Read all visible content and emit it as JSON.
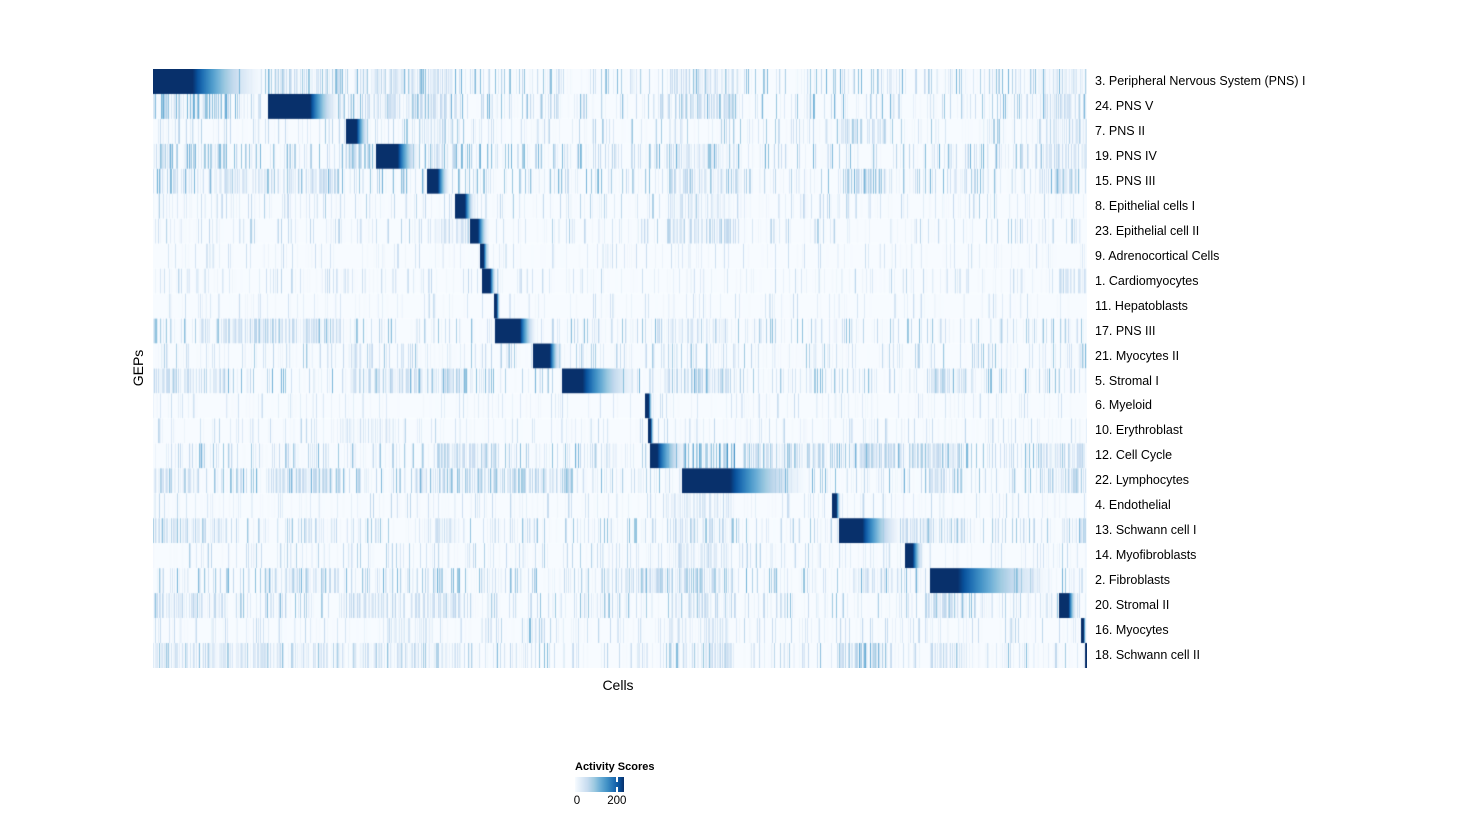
{
  "chart_data": {
    "type": "heatmap",
    "title": "",
    "xlabel": "Cells",
    "ylabel": "GEPs",
    "legend": {
      "title": "Activity Scores",
      "tick_labels": [
        "0",
        "200"
      ],
      "tick_values": [
        0,
        200
      ],
      "range_min": 0,
      "range_max": 240
    },
    "colormap_stops": [
      "#f7fbff",
      "#deebf7",
      "#c6dbef",
      "#9ecae1",
      "#6baed6",
      "#4292c6",
      "#2171b5",
      "#08519c",
      "#08306b"
    ],
    "colormap_positions": [
      0,
      0.13,
      0.26,
      0.39,
      0.52,
      0.65,
      0.78,
      0.9,
      1.0
    ],
    "n_rows": 24,
    "n_cols": 934,
    "seed": 42,
    "rows": [
      {
        "label": "3. Peripheral Nervous System (PNS) I",
        "block": [
          0.0,
          0.042
        ],
        "fade": 0.12,
        "noise": 1.0,
        "clusters": [
          [
            0.12,
            0.2,
            0.5
          ],
          [
            0.24,
            0.32,
            0.3
          ],
          [
            0.55,
            0.63,
            0.3
          ],
          [
            0.95,
            1.0,
            0.2
          ]
        ]
      },
      {
        "label": "24. PNS V",
        "block": [
          0.123,
          0.168
        ],
        "fade": 0.2,
        "noise": 1.0,
        "clusters": [
          [
            0.0,
            0.08,
            0.55
          ],
          [
            0.21,
            0.33,
            0.3
          ],
          [
            0.55,
            0.63,
            0.3
          ],
          [
            0.95,
            1.0,
            0.25
          ]
        ]
      },
      {
        "label": "7. PNS II",
        "block": [
          0.206,
          0.218
        ],
        "fade": 0.232,
        "noise": 0.8,
        "clusters": [
          [
            0.29,
            0.33,
            0.2
          ],
          [
            0.735,
            0.785,
            0.4
          ],
          [
            0.95,
            1.0,
            0.3
          ]
        ]
      },
      {
        "label": "19. PNS IV",
        "block": [
          0.238,
          0.262
        ],
        "fade": 0.286,
        "noise": 1.0,
        "clusters": [
          [
            0.0,
            0.08,
            0.5
          ],
          [
            0.205,
            0.235,
            0.45
          ],
          [
            0.29,
            0.33,
            0.3
          ],
          [
            0.55,
            0.63,
            0.25
          ],
          [
            0.95,
            1.0,
            0.3
          ]
        ]
      },
      {
        "label": "15. PNS III",
        "block": [
          0.293,
          0.305
        ],
        "fade": 0.318,
        "noise": 1.0,
        "clusters": [
          [
            0.0,
            0.2,
            0.25
          ],
          [
            0.55,
            0.63,
            0.3
          ],
          [
            0.735,
            0.785,
            0.45
          ],
          [
            0.95,
            1.0,
            0.3
          ]
        ]
      },
      {
        "label": "8. Epithelial cells I",
        "block": [
          0.323,
          0.334
        ],
        "fade": 0.345,
        "noise": 0.7,
        "clusters": [
          [
            0.55,
            0.62,
            0.2
          ]
        ]
      },
      {
        "label": "23. Epithelial cell II",
        "block": [
          0.339,
          0.348
        ],
        "fade": 0.36,
        "noise": 0.7,
        "clusters": [
          [
            0.3,
            0.35,
            0.2
          ],
          [
            0.55,
            0.63,
            0.35
          ]
        ]
      },
      {
        "label": "9. Adrenocortical Cells",
        "block": [
          0.35,
          0.354
        ],
        "fade": 0.36,
        "noise": 0.5,
        "clusters": []
      },
      {
        "label": "1. Cardiomyocytes",
        "block": [
          0.352,
          0.361
        ],
        "fade": 0.368,
        "noise": 0.6,
        "clusters": [
          [
            0.97,
            1.0,
            0.25
          ]
        ]
      },
      {
        "label": "11. Hepatoblasts",
        "block": [
          0.365,
          0.368
        ],
        "fade": 0.372,
        "noise": 0.5,
        "clusters": []
      },
      {
        "label": "17. PNS III",
        "block": [
          0.366,
          0.393
        ],
        "fade": 0.411,
        "noise": 0.9,
        "clusters": [
          [
            0.0,
            0.005,
            0.85
          ],
          [
            0.05,
            0.2,
            0.3
          ],
          [
            0.55,
            0.62,
            0.25
          ]
        ]
      },
      {
        "label": "21. Myocytes II",
        "block": [
          0.407,
          0.425
        ],
        "fade": 0.437,
        "noise": 0.8,
        "clusters": [
          [
            0.21,
            0.235,
            0.35
          ],
          [
            0.992,
            1.0,
            0.6
          ]
        ]
      },
      {
        "label": "5. Stromal I",
        "block": [
          0.438,
          0.46
        ],
        "fade": 0.521,
        "noise": 1.0,
        "clusters": [
          [
            0.0,
            0.08,
            0.3
          ],
          [
            0.21,
            0.33,
            0.35
          ],
          [
            0.55,
            0.62,
            0.3
          ],
          [
            0.83,
            0.87,
            0.3
          ]
        ]
      },
      {
        "label": "6. Myeloid",
        "block": [
          0.527,
          0.531
        ],
        "fade": 0.535,
        "noise": 0.5,
        "clusters": []
      },
      {
        "label": "10. Erythroblast",
        "block": [
          0.53,
          0.533
        ],
        "fade": 0.537,
        "noise": 0.6,
        "clusters": [
          [
            0.2,
            0.26,
            0.2
          ]
        ]
      },
      {
        "label": "12. Cell Cycle",
        "block": [
          0.532,
          0.54
        ],
        "fade": 0.572,
        "noise": 1.0,
        "clusters": [
          [
            0.3,
            0.37,
            0.35
          ],
          [
            0.567,
            0.623,
            0.65
          ],
          [
            0.63,
            0.72,
            0.35
          ],
          [
            0.75,
            0.87,
            0.35
          ],
          [
            0.95,
            1.0,
            0.3
          ]
        ]
      },
      {
        "label": "22. Lymphocytes",
        "block": [
          0.566,
          0.618
        ],
        "fade": 0.703,
        "noise": 1.0,
        "clusters": [
          [
            0.0,
            0.05,
            0.35
          ],
          [
            0.12,
            0.2,
            0.3
          ],
          [
            0.28,
            0.45,
            0.45
          ],
          [
            0.83,
            0.87,
            0.45
          ],
          [
            0.95,
            1.0,
            0.35
          ]
        ]
      },
      {
        "label": "4. Endothelial",
        "block": [
          0.727,
          0.732
        ],
        "fade": 0.737,
        "noise": 0.6,
        "clusters": [
          [
            0.55,
            0.62,
            0.2
          ]
        ]
      },
      {
        "label": "13. Schwann cell I",
        "block": [
          0.735,
          0.76
        ],
        "fade": 0.803,
        "noise": 0.9,
        "clusters": [
          [
            0.0,
            0.08,
            0.35
          ],
          [
            0.29,
            0.33,
            0.25
          ],
          [
            0.55,
            0.62,
            0.3
          ],
          [
            0.8,
            0.87,
            0.35
          ],
          [
            0.99,
            1.0,
            0.5
          ]
        ]
      },
      {
        "label": "14. Myofibroblasts",
        "block": [
          0.805,
          0.814
        ],
        "fade": 0.826,
        "noise": 0.7,
        "clusters": [
          [
            0.55,
            0.62,
            0.2
          ]
        ]
      },
      {
        "label": "2. Fibroblasts",
        "block": [
          0.832,
          0.862
        ],
        "fade": 0.965,
        "noise": 1.0,
        "clusters": [
          [
            0.12,
            0.2,
            0.3
          ],
          [
            0.29,
            0.31,
            0.35
          ],
          [
            0.5,
            0.63,
            0.35
          ],
          [
            0.75,
            0.8,
            0.3
          ]
        ]
      },
      {
        "label": "20. Stromal II",
        "block": [
          0.971,
          0.981
        ],
        "fade": 0.99,
        "noise": 0.9,
        "clusters": [
          [
            0.0,
            0.08,
            0.3
          ],
          [
            0.21,
            0.33,
            0.3
          ],
          [
            0.55,
            0.62,
            0.3
          ],
          [
            0.83,
            0.87,
            0.3
          ]
        ]
      },
      {
        "label": "16. Myocytes",
        "block": [
          0.994,
          0.997
        ],
        "fade": 1.0,
        "noise": 0.6,
        "clusters": [
          [
            0.25,
            0.3,
            0.2
          ],
          [
            0.35,
            0.36,
            0.3
          ],
          [
            0.4,
            0.42,
            0.5
          ],
          [
            0.55,
            0.62,
            0.2
          ]
        ]
      },
      {
        "label": "18. Schwann cell II",
        "block": [
          0.998,
          1.0
        ],
        "fade": 1.0,
        "noise": 0.9,
        "clusters": [
          [
            0.0,
            0.33,
            0.22
          ],
          [
            0.55,
            0.62,
            0.28
          ],
          [
            0.735,
            0.785,
            0.55
          ],
          [
            0.83,
            0.87,
            0.3
          ]
        ]
      }
    ]
  }
}
